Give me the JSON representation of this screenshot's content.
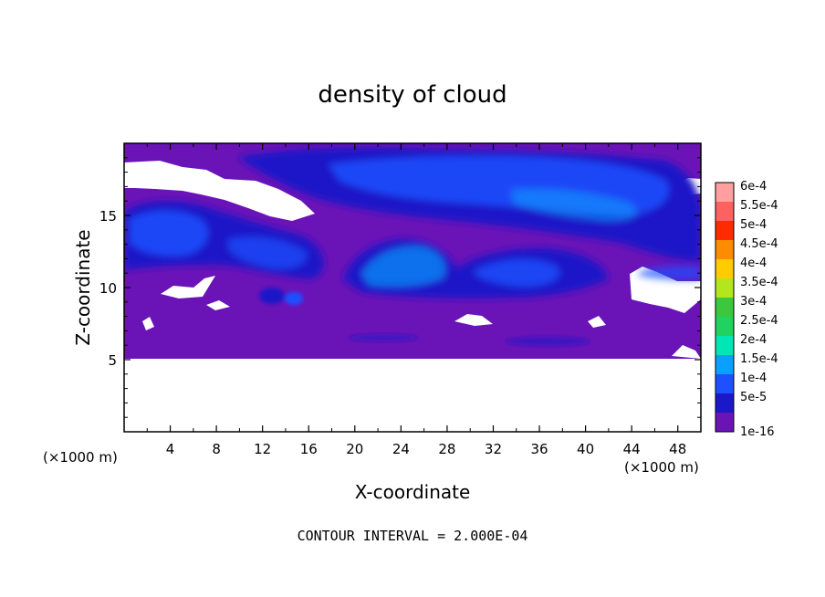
{
  "chart_data": {
    "type": "heatmap",
    "title": "density of cloud",
    "xlabel": "X-coordinate",
    "ylabel": "Z-coordinate",
    "x_unit": "(×1000 m)",
    "z_unit": "(×1000 m)",
    "xlim": [
      0,
      50
    ],
    "ylim": [
      0,
      20
    ],
    "x_ticks": [
      "4",
      "8",
      "12",
      "16",
      "20",
      "24",
      "28",
      "32",
      "36",
      "40",
      "44",
      "48"
    ],
    "y_ticks": [
      "5",
      "10",
      "15"
    ],
    "colorbar_labels": [
      "6e-4",
      "5.5e-4",
      "5e-4",
      "4.5e-4",
      "4e-4",
      "3.5e-4",
      "3e-4",
      "2.5e-4",
      "2e-4",
      "1.5e-4",
      "1e-4",
      "5e-5",
      "1e-16"
    ],
    "colorbar_colors": [
      "#ff9f9f",
      "#ff6060",
      "#ff2a00",
      "#ff8c00",
      "#ffcc00",
      "#b4e61e",
      "#3cc83c",
      "#20d260",
      "#00e6b4",
      "#0aa0ff",
      "#1e50ff",
      "#1a18c8",
      "#6a14b8"
    ],
    "contour_interval": "CONTOUR INTERVAL = 2.000E-04",
    "grid": false,
    "legend": "colorbar-right"
  }
}
